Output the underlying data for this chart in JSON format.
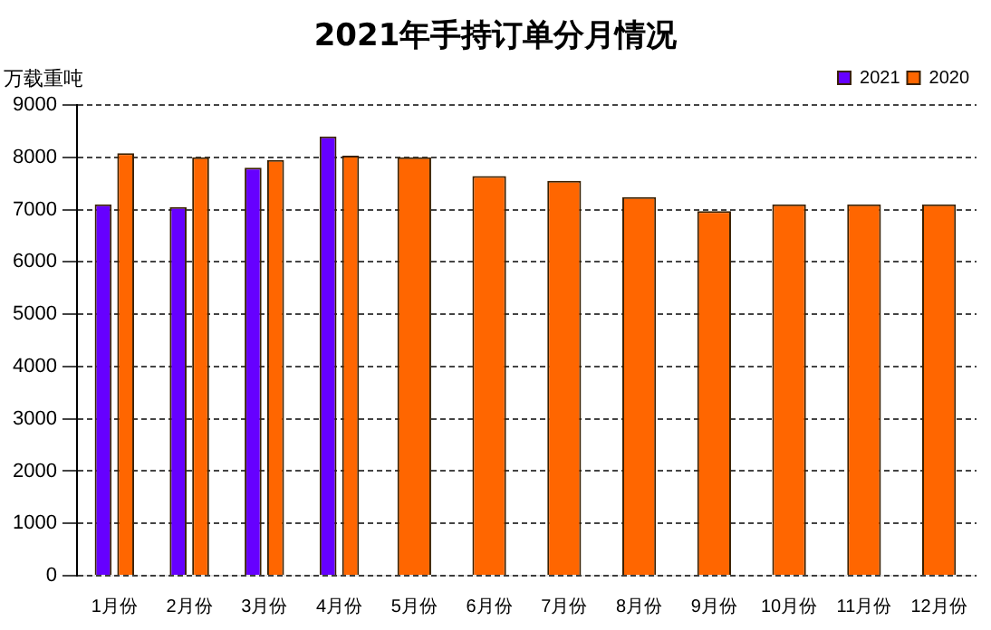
{
  "chart_data": {
    "type": "bar",
    "title": "2021年手持订单分月情况",
    "ylabel": "万载重吨",
    "categories": [
      "1月份",
      "2月份",
      "3月份",
      "4月份",
      "5月份",
      "6月份",
      "7月份",
      "8月份",
      "9月份",
      "10月份",
      "11月份",
      "12月份"
    ],
    "series": [
      {
        "name": "2021",
        "color": "#6600ff",
        "values": [
          7100,
          7050,
          7800,
          8400,
          null,
          null,
          null,
          null,
          null,
          null,
          null,
          null
        ]
      },
      {
        "name": "2020",
        "color": "#ff6600",
        "values": [
          8080,
          8000,
          7950,
          8030,
          8000,
          7640,
          7550,
          7240,
          6970,
          7100,
          7100,
          7100
        ]
      }
    ],
    "ylim": [
      0,
      9000
    ],
    "yticks": [
      0,
      1000,
      2000,
      3000,
      4000,
      5000,
      6000,
      7000,
      8000,
      9000
    ],
    "grid": "y",
    "legend": "top right",
    "line_style": "dashed"
  }
}
